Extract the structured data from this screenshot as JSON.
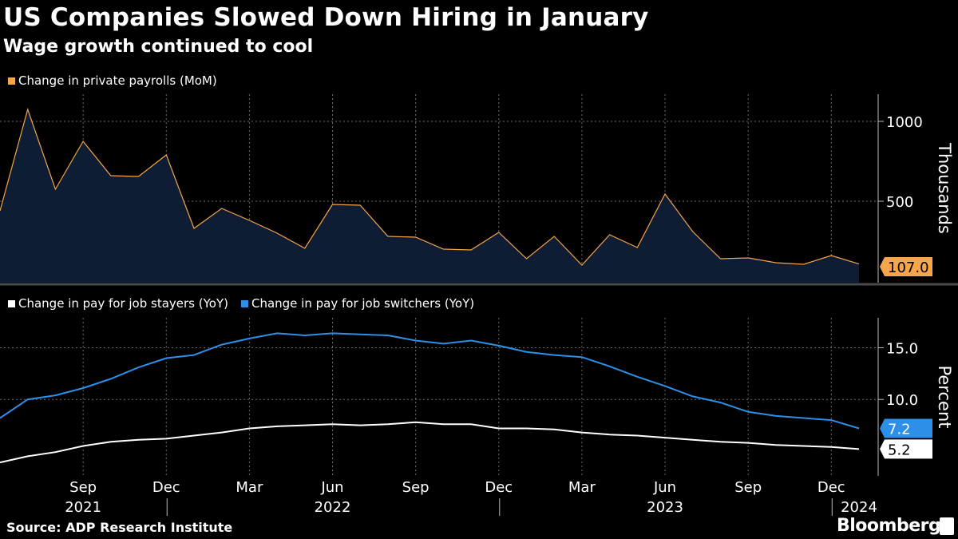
{
  "header": {
    "title": "US Companies Slowed Down Hiring in January",
    "subtitle": "Wage growth continued to cool"
  },
  "footer": {
    "source": "Source: ADP Research Institute",
    "brand": "Bloomberg",
    "brand_icon": "bloomberg-terminal-icon"
  },
  "chart_data": [
    {
      "type": "area",
      "legend": [
        {
          "name": "Change in private payrolls (MoM)",
          "color": "#f5a54a"
        }
      ],
      "series": [
        {
          "name": "Change in private payrolls (MoM)",
          "color": "#f5a54a",
          "fill": "#0e1d33",
          "x": [
            "2021-07",
            "2021-08",
            "2021-09",
            "2021-10",
            "2021-11",
            "2021-12",
            "2022-01",
            "2022-02",
            "2022-03",
            "2022-04",
            "2022-05",
            "2022-06",
            "2022-07",
            "2022-08",
            "2022-09",
            "2022-10",
            "2022-11",
            "2022-12",
            "2023-01",
            "2023-02",
            "2023-03",
            "2023-04",
            "2023-05",
            "2023-06",
            "2023-07",
            "2023-08",
            "2023-09",
            "2023-10",
            "2023-11",
            "2023-12",
            "2024-01"
          ],
          "values": [
            1075,
            575,
            875,
            660,
            655,
            790,
            330,
            455,
            380,
            300,
            205,
            480,
            475,
            280,
            275,
            200,
            195,
            305,
            140,
            280,
            100,
            290,
            210,
            545,
            310,
            140,
            145,
            115,
            105,
            160,
            107
          ]
        }
      ],
      "x_start": "2021-06",
      "y_start": 440,
      "y_axis": {
        "label": "Thousands",
        "ticks": [
          500,
          1000
        ],
        "ylim": [
          -10,
          1170
        ],
        "position": "right"
      },
      "last_value_label": "107.0",
      "grid": true
    },
    {
      "type": "line",
      "legend": [
        {
          "name": "Change in pay for job stayers (YoY)",
          "color": "#ffffff"
        },
        {
          "name": "Change in pay for job switchers (YoY)",
          "color": "#2e8fe8"
        }
      ],
      "x": [
        "2021-07",
        "2021-08",
        "2021-09",
        "2021-10",
        "2021-11",
        "2021-12",
        "2022-01",
        "2022-02",
        "2022-03",
        "2022-04",
        "2022-05",
        "2022-06",
        "2022-07",
        "2022-08",
        "2022-09",
        "2022-10",
        "2022-11",
        "2022-12",
        "2023-01",
        "2023-02",
        "2023-03",
        "2023-04",
        "2023-05",
        "2023-06",
        "2023-07",
        "2023-08",
        "2023-09",
        "2023-10",
        "2023-11",
        "2023-12",
        "2024-01"
      ],
      "series": [
        {
          "name": "Change in pay for job stayers (YoY)",
          "color": "#ffffff",
          "x_start": "2021-06",
          "y_start": 3.9,
          "values": [
            4.5,
            4.9,
            5.5,
            5.9,
            6.1,
            6.2,
            6.5,
            6.8,
            7.2,
            7.4,
            7.5,
            7.6,
            7.5,
            7.6,
            7.8,
            7.6,
            7.6,
            7.2,
            7.2,
            7.1,
            6.8,
            6.6,
            6.5,
            6.3,
            6.1,
            5.9,
            5.8,
            5.6,
            5.5,
            5.4,
            5.2
          ]
        },
        {
          "name": "Change in pay for job switchers (YoY)",
          "color": "#2e8fe8",
          "x_start": "2021-06",
          "y_start": 8.2,
          "values": [
            10.0,
            10.4,
            11.1,
            12.0,
            13.1,
            14.0,
            14.3,
            15.3,
            15.9,
            16.4,
            16.2,
            16.4,
            16.3,
            16.2,
            15.7,
            15.4,
            15.7,
            15.2,
            14.6,
            14.3,
            14.1,
            13.2,
            12.2,
            11.3,
            10.3,
            9.7,
            8.8,
            8.4,
            8.2,
            8.0,
            7.2
          ]
        }
      ],
      "y_axis": {
        "label": "Percent",
        "ticks": [
          10.0,
          15.0
        ],
        "tick_labels": [
          "10.0",
          "15.0"
        ],
        "ylim": [
          2.6,
          17.9
        ],
        "position": "right"
      },
      "last_value_labels": [
        "5.2",
        "7.2"
      ],
      "grid": true
    }
  ],
  "x_axis": {
    "month_ticks": [
      {
        "date": "2021-09",
        "label": "Sep"
      },
      {
        "date": "2021-12",
        "label": "Dec"
      },
      {
        "date": "2022-03",
        "label": "Mar"
      },
      {
        "date": "2022-06",
        "label": "Jun"
      },
      {
        "date": "2022-09",
        "label": "Sep"
      },
      {
        "date": "2022-12",
        "label": "Dec"
      },
      {
        "date": "2023-03",
        "label": "Mar"
      },
      {
        "date": "2023-06",
        "label": "Jun"
      },
      {
        "date": "2023-09",
        "label": "Sep"
      },
      {
        "date": "2023-12",
        "label": "Dec"
      }
    ],
    "year_labels": [
      {
        "date": "2021-09",
        "label": "2021"
      },
      {
        "date": "2022-06",
        "label": "2022"
      },
      {
        "date": "2023-06",
        "label": "2023"
      },
      {
        "date": "2024-01",
        "label": "2024"
      }
    ],
    "year_boundaries": [
      "2021-12",
      "2022-12",
      "2023-12"
    ]
  }
}
